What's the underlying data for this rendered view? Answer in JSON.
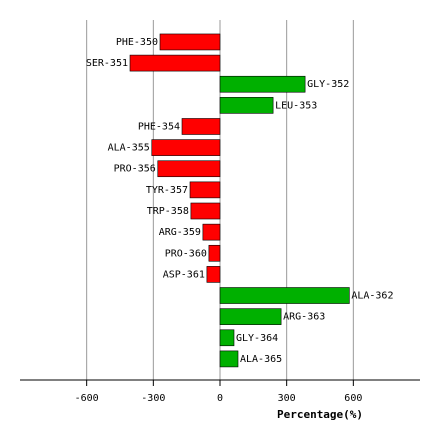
{
  "chart_data": {
    "type": "bar",
    "orientation": "horizontal",
    "x_label": "Percentage(%)",
    "categories": [
      "PHE-350",
      "SER-351",
      "GLY-352",
      "LEU-353",
      "PHE-354",
      "ALA-355",
      "PRO-356",
      "TYR-357",
      "TRP-358",
      "ARG-359",
      "PRO-360",
      "ASP-361",
      "ALA-362",
      "ARG-363",
      "GLY-364",
      "ALA-365"
    ],
    "values": [
      -270,
      -405,
      383,
      239,
      -171,
      -307,
      -280,
      -135,
      -131,
      -77,
      -50,
      -59,
      582,
      275,
      63,
      81
    ],
    "color_positive": "#00b000",
    "color_negative": "#ff0000",
    "xlim": [
      -900,
      900
    ],
    "xticks": [
      -600,
      -300,
      0,
      300,
      600
    ],
    "grid": true
  }
}
